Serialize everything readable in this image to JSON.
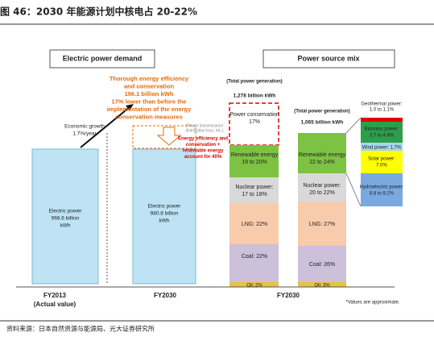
{
  "header": {
    "title": "图 46：2030 年能源计划中核电占 20-22%"
  },
  "left_panel": {
    "title": "Electric power demand",
    "growth": [
      "Economic growth",
      "1.7%/year"
    ],
    "efficiency": [
      "Thorough energy efficiency",
      "and conservation",
      "196.1 billion kWh",
      "17% lower than before the",
      "implementation of the energy",
      "conservation measures"
    ],
    "loss": [
      "(Power transmission/",
      "distribution loss, etc.)"
    ],
    "bars": [
      {
        "label": [
          "Electric power",
          "966.6 billion",
          "kWh"
        ],
        "axis": [
          "FY2013",
          "(Actual value)"
        ]
      },
      {
        "label": [
          "Electric power",
          "980.8 billion",
          "kWh"
        ],
        "axis": [
          "FY2030"
        ]
      }
    ]
  },
  "right_panel": {
    "title": "Power source mix",
    "note_red": [
      "Energy efficiency and",
      "conservation +",
      "renewable energy",
      "account for 40%"
    ],
    "stack1": {
      "header": "(Total power generation)",
      "total": "1,278 billion kWh",
      "conservation": [
        "Power conservation",
        "17%"
      ],
      "renewable": [
        "Renewable energy",
        "19 to 20%"
      ],
      "nuclear": [
        "Nuclear power:",
        "17 to 18%"
      ],
      "lng": "LNG: 22%",
      "coal": "Coal: 22%",
      "oil": "Oil: 2%"
    },
    "stack2": {
      "header": "(Total power generation)",
      "total": "1,065 billion kWh",
      "renewable": [
        "Renewable energy",
        "22 to 24%"
      ],
      "nuclear": [
        "Nuclear power:",
        "20 to 22%"
      ],
      "lng": "LNG: 27%",
      "coal": "Coal: 26%",
      "oil": "Oil: 3%"
    },
    "axis": "FY2030",
    "breakdown": {
      "geothermal": [
        "Geothermal power:",
        "1.0 to 1.1%"
      ],
      "biomass": [
        "Biomass power:",
        "3.7 to 4.6%"
      ],
      "wind": "Wind power: 1.7%",
      "solar": [
        "Solar power:",
        "7.0%"
      ],
      "hydro": [
        "Hydroelectric power:",
        "8.8 to 9.2%"
      ]
    },
    "note": "*Values are approximate."
  },
  "footer": {
    "source": "资料来源：日本自然资源与能源局、光大证券研究所"
  }
}
